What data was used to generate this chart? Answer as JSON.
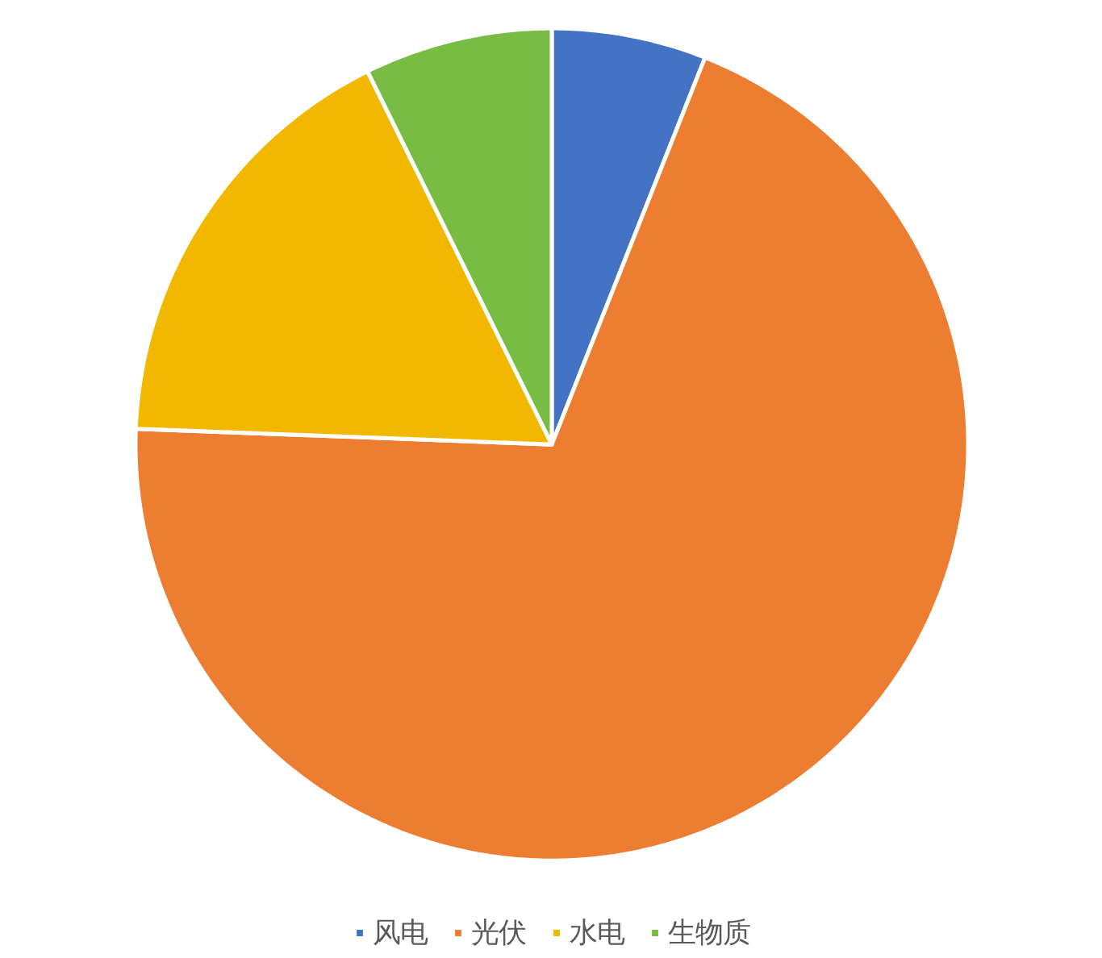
{
  "chart_data": {
    "type": "pie",
    "categories": [
      "风电",
      "光伏",
      "水电",
      "生物质"
    ],
    "values": [
      6.0,
      69.6,
      17.1,
      7.3
    ],
    "colors": [
      "#4472c4",
      "#ed7d31",
      "#f2b800",
      "#78bc44"
    ],
    "legend": "bottom"
  }
}
